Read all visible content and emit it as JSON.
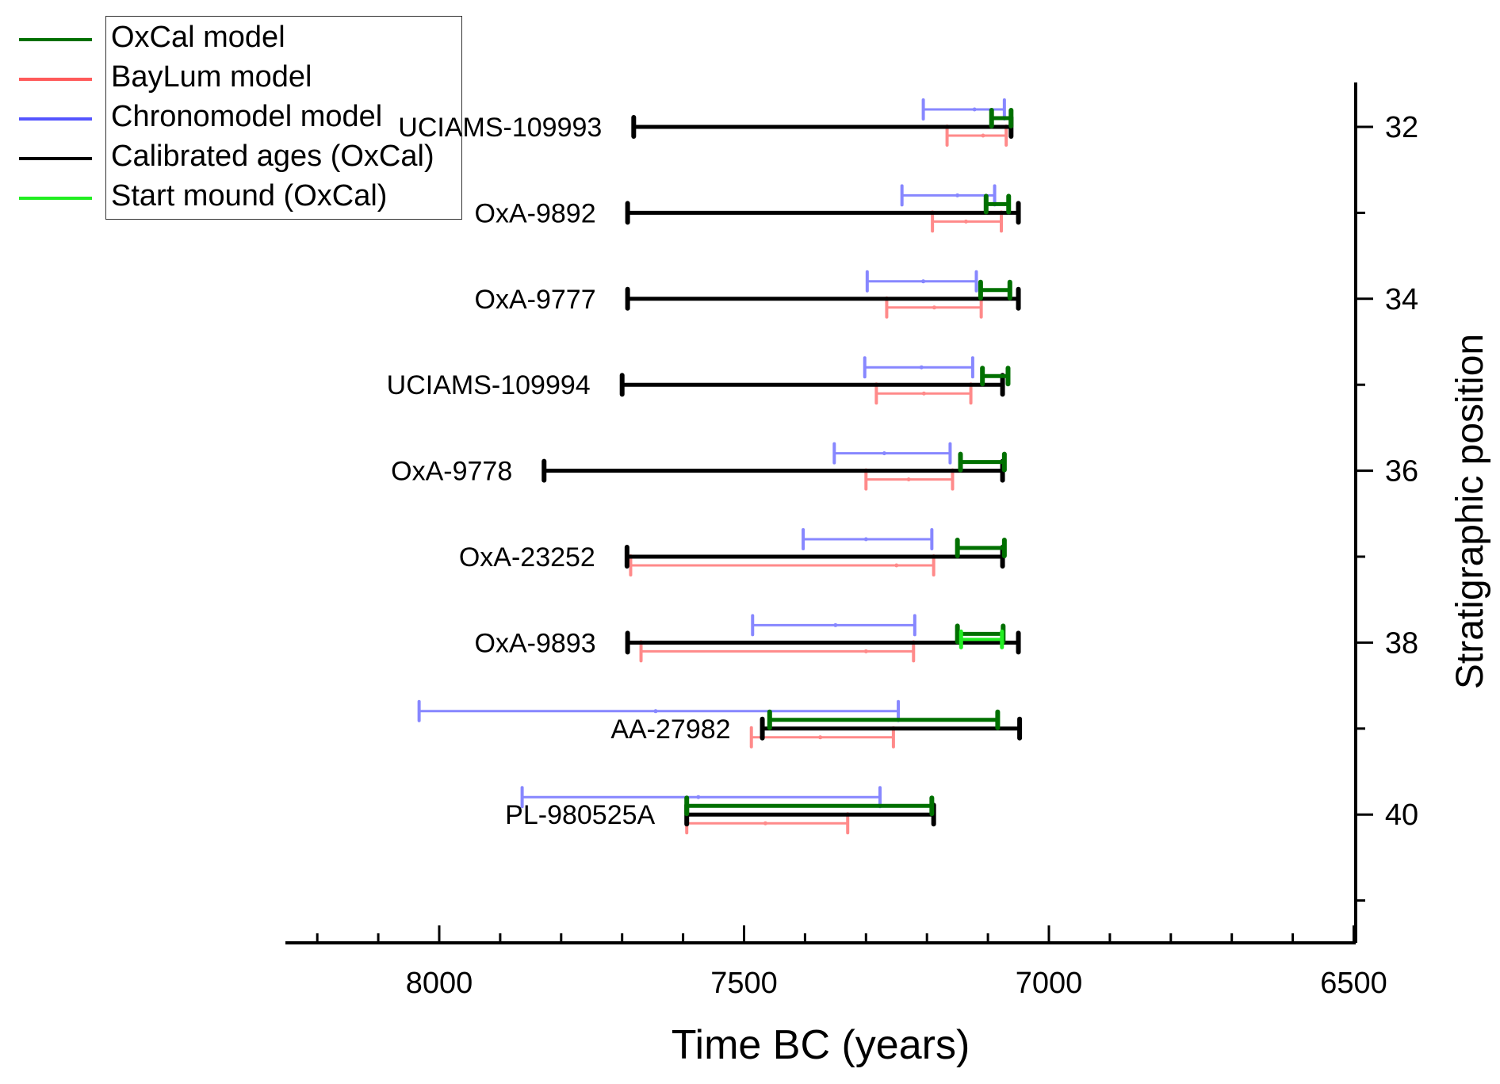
{
  "chart_data": {
    "type": "errorbar-intervals",
    "title": "",
    "xlabel": "Time BC (years)",
    "ylabel": "Stratigraphic position",
    "xlim": [
      8260,
      6500
    ],
    "ylim": [
      31.5,
      41.5
    ],
    "x_reversed": true,
    "x_ticks": [
      8000,
      7500,
      7000,
      6500
    ],
    "y_ticks": [
      32,
      34,
      36,
      38,
      40
    ],
    "legend_position": "top-left",
    "legend": [
      {
        "key": "oxcal",
        "label": "OxCal model",
        "color": "#007000"
      },
      {
        "key": "baylum",
        "label": "BayLum model",
        "color": "#ff5a5a"
      },
      {
        "key": "chrono",
        "label": "Chronomodel model",
        "color": "#5555ff"
      },
      {
        "key": "calib",
        "label": "Calibrated ages (OxCal)",
        "color": "#000000"
      },
      {
        "key": "start",
        "label": "Start mound (OxCal)",
        "color": "#22ee22"
      }
    ],
    "samples": [
      {
        "label": "UCIAMS-109993",
        "position": 32,
        "chrono": [
          7206,
          7073,
          7122
        ],
        "oxcal": [
          7094,
          7062
        ],
        "calib": [
          7681,
          7062
        ],
        "baylum": [
          7167,
          7070,
          7108
        ]
      },
      {
        "label": "OxA-9892",
        "position": 33,
        "chrono": [
          7241,
          7089,
          7150
        ],
        "oxcal": [
          7103,
          7066
        ],
        "calib": [
          7691,
          7050
        ],
        "baylum": [
          7191,
          7078,
          7136
        ]
      },
      {
        "label": "OxA-9777",
        "position": 34,
        "chrono": [
          7298,
          7119,
          7206
        ],
        "oxcal": [
          7112,
          7064
        ],
        "calib": [
          7691,
          7050
        ],
        "baylum": [
          7266,
          7111,
          7188
        ]
      },
      {
        "label": "UCIAMS-109994",
        "position": 35,
        "chrono": [
          7302,
          7125,
          7209
        ],
        "oxcal": [
          7109,
          7067
        ],
        "calib": [
          7700,
          7076
        ],
        "baylum": [
          7283,
          7128,
          7205
        ]
      },
      {
        "label": "OxA-9778",
        "position": 36,
        "chrono": [
          7352,
          7162,
          7270
        ],
        "oxcal": [
          7145,
          7073
        ],
        "calib": [
          7828,
          7076
        ],
        "baylum": [
          7300,
          7158,
          7230
        ]
      },
      {
        "label": "OxA-23252",
        "position": 37,
        "chrono": [
          7403,
          7192,
          7300
        ],
        "oxcal": [
          7150,
          7073
        ],
        "calib": [
          7692,
          7076
        ],
        "baylum": [
          7686,
          7189,
          7250
        ]
      },
      {
        "label": "OxA-9893",
        "position": 38,
        "chrono": [
          7486,
          7220,
          7350
        ],
        "oxcal": [
          7150,
          7075
        ],
        "start": [
          7144,
          7077
        ],
        "calib": [
          7691,
          7050
        ],
        "baylum": [
          7669,
          7222,
          7300
        ]
      },
      {
        "label": "AA-27982",
        "position": 39,
        "chrono": [
          8033,
          7247,
          7645
        ],
        "oxcal": [
          7458,
          7084
        ],
        "calib": [
          7470,
          7048
        ],
        "baylum": [
          7488,
          7255,
          7375
        ]
      },
      {
        "label": "PL-980525A",
        "position": 40,
        "chrono": [
          7864,
          7277,
          7575
        ],
        "oxcal": [
          7594,
          7192
        ],
        "calib": [
          7594,
          7189
        ],
        "baylum": [
          7594,
          7330,
          7465
        ]
      }
    ]
  }
}
